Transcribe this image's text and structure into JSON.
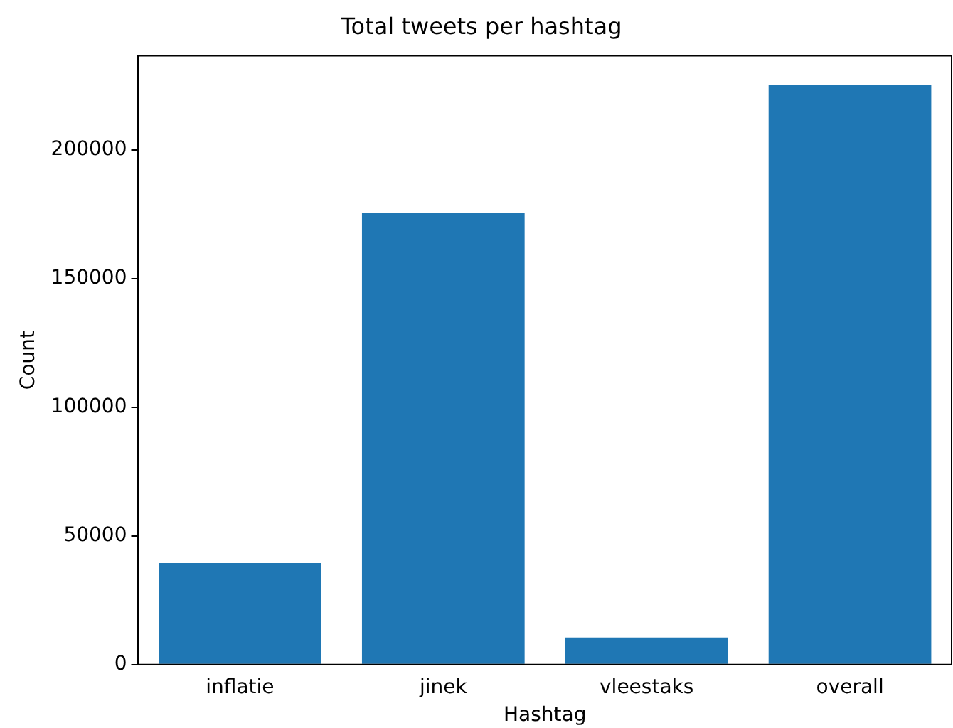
{
  "chart_data": {
    "type": "bar",
    "title": "Total tweets per hashtag",
    "xlabel": "Hashtag",
    "ylabel": "Count",
    "categories": [
      "inflatie",
      "jinek",
      "vleestaks",
      "overall"
    ],
    "values": [
      39500,
      175500,
      10500,
      225500
    ],
    "color": "#1f77b4",
    "ylim": [
      0,
      236700
    ],
    "yticks": [
      0,
      50000,
      100000,
      150000,
      200000
    ],
    "grid": false,
    "legend": false
  }
}
